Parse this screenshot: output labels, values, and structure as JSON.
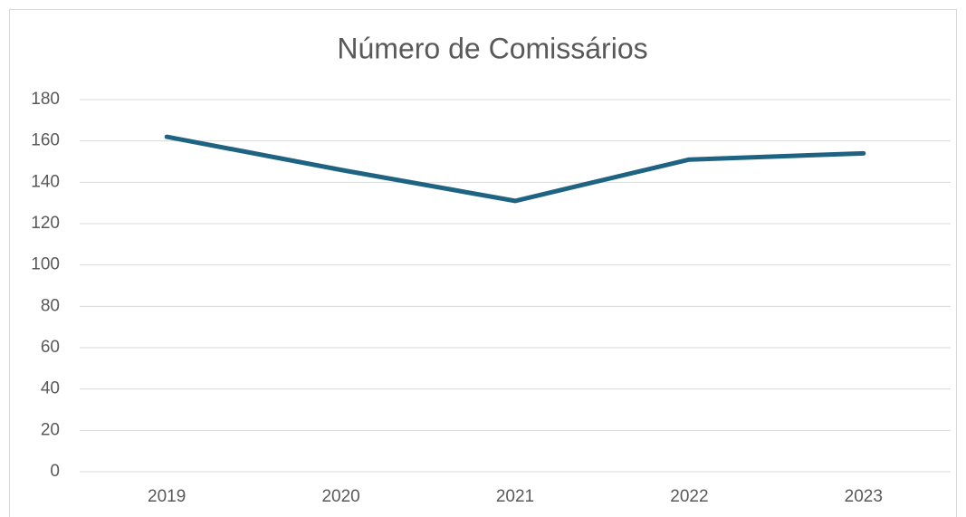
{
  "chart_data": {
    "type": "line",
    "title": "Número de Comissários",
    "categories": [
      "2019",
      "2020",
      "2021",
      "2022",
      "2023"
    ],
    "values": [
      162,
      146,
      131,
      151,
      154
    ],
    "color": "#1e6482",
    "ylim": [
      0,
      180
    ],
    "yticks": [
      0,
      20,
      40,
      60,
      80,
      100,
      120,
      140,
      160,
      180
    ],
    "grid": true
  }
}
